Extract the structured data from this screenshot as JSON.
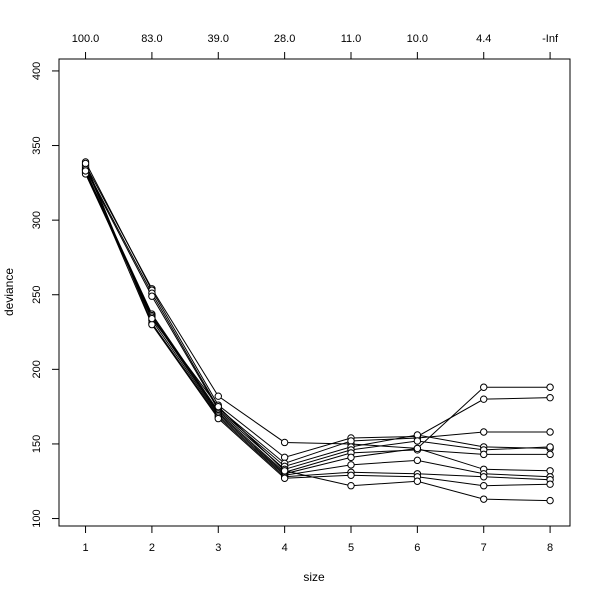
{
  "chart_data": {
    "type": "line",
    "xlabel": "size",
    "ylabel": "deviance",
    "x": [
      1,
      2,
      3,
      4,
      5,
      6,
      7,
      8
    ],
    "xlim": [
      0.6,
      8.3
    ],
    "ylim": [
      95,
      408
    ],
    "xticks": [
      1,
      2,
      3,
      4,
      5,
      6,
      7,
      8
    ],
    "yticks": [
      100,
      150,
      200,
      250,
      300,
      350,
      400
    ],
    "top_axis_labels": [
      "100.0",
      "83.0",
      "39.0",
      "28.0",
      "11.0",
      "10.0",
      "4.4",
      "-Inf"
    ],
    "grid": false,
    "legend": "none",
    "marker": "open-circle",
    "line_color": "#000000",
    "series": [
      {
        "values": [
          337,
          254,
          182,
          151,
          150,
          147,
          188,
          188
        ]
      },
      {
        "values": [
          339,
          253,
          176,
          141,
          154,
          155,
          180,
          181
        ]
      },
      {
        "values": [
          335,
          251,
          174,
          137,
          152,
          154,
          158,
          158
        ]
      },
      {
        "values": [
          334,
          249,
          173,
          135,
          148,
          156,
          148,
          147
        ]
      },
      {
        "values": [
          333,
          237,
          172,
          133,
          146,
          152,
          146,
          148
        ]
      },
      {
        "values": [
          332,
          236,
          171,
          131,
          144,
          146,
          143,
          143
        ]
      },
      {
        "values": [
          331,
          235,
          170,
          130,
          141,
          147,
          133,
          132
        ]
      },
      {
        "values": [
          336,
          233,
          169,
          129,
          136,
          139,
          130,
          128
        ]
      },
      {
        "values": [
          338,
          231,
          168,
          128,
          131,
          130,
          128,
          126
        ]
      },
      {
        "values": [
          334,
          230,
          167,
          127,
          129,
          128,
          122,
          123
        ]
      },
      {
        "values": [
          333,
          234,
          175,
          132,
          122,
          125,
          113,
          112
        ]
      }
    ]
  }
}
